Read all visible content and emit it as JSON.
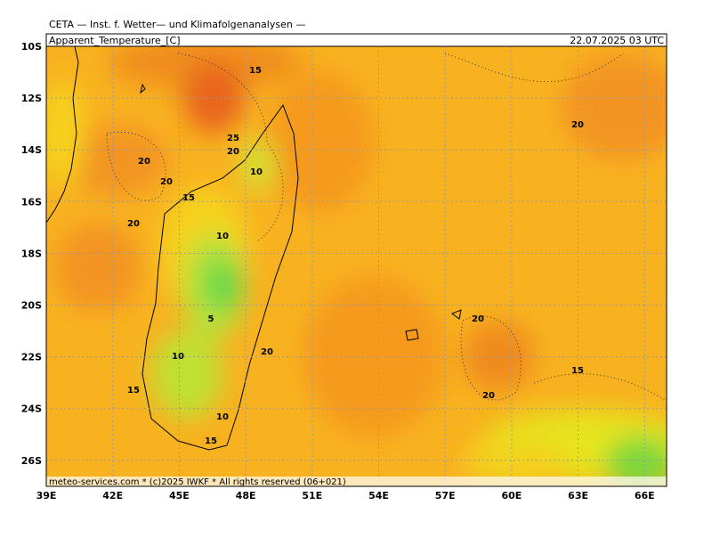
{
  "header": "CETA — Inst. f. Wetter— und Klimafolgenanalysen —",
  "map": {
    "title": "Apparent_Temperature_[C]",
    "valid_time": "22.07.2025 03 UTC",
    "lat_labels": [
      "10S",
      "12S",
      "14S",
      "16S",
      "18S",
      "20S",
      "22S",
      "24S",
      "26S"
    ],
    "lon_labels": [
      "39E",
      "42E",
      "45E",
      "48E",
      "51E",
      "54E",
      "57E",
      "60E",
      "63E",
      "66E"
    ],
    "contour_labels": [
      "15",
      "25",
      "20",
      "10",
      "20",
      "20",
      "15",
      "20",
      "10",
      "5",
      "10",
      "20",
      "15",
      "10",
      "15",
      "20",
      "20",
      "15",
      "20"
    ],
    "footer": "meteo-services.com * (c)2025 IWKF * All rights reserved (06+021)"
  }
}
